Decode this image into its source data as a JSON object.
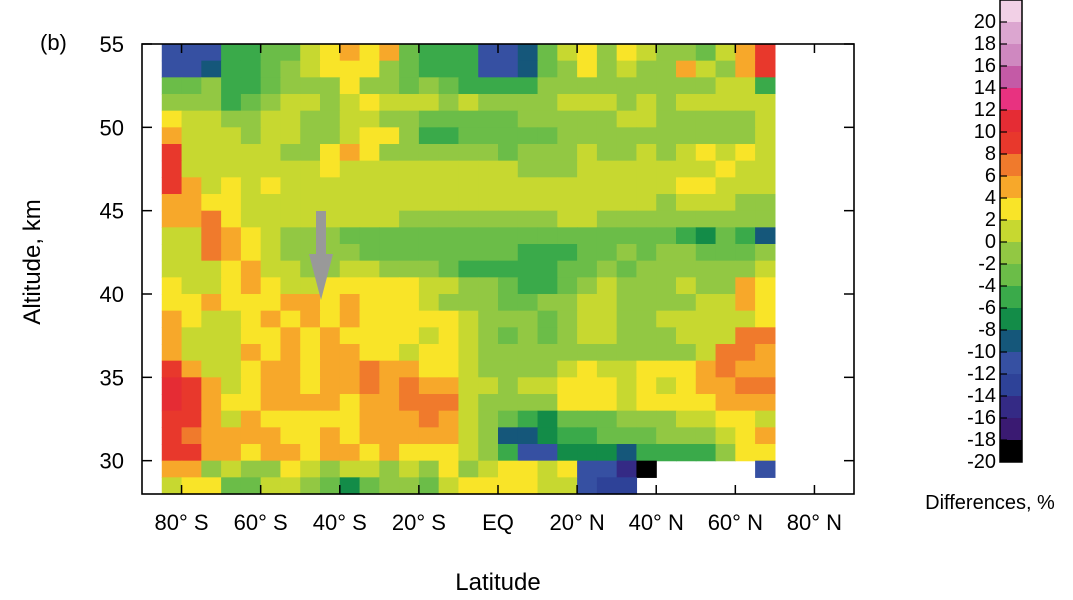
{
  "chart_data": {
    "type": "heatmap",
    "panel_label": "(b)",
    "xlabel": "Latitude",
    "ylabel": "Altitude, km",
    "colorbar_label": "Differences, %",
    "x_ticks": [
      "80° S",
      "60° S",
      "40° S",
      "20° S",
      "EQ",
      "20° N",
      "40° N",
      "60° N",
      "80° N"
    ],
    "y_ticks": [
      30,
      35,
      40,
      45,
      50,
      55
    ],
    "xlim": [
      -90,
      90
    ],
    "ylim": [
      28,
      55
    ],
    "x_centers": [
      -82.5,
      -77.5,
      -72.5,
      -67.5,
      -62.5,
      -57.5,
      -52.5,
      -47.5,
      -42.5,
      -37.5,
      -32.5,
      -27.5,
      -22.5,
      -17.5,
      -12.5,
      -7.5,
      -2.5,
      2.5,
      7.5,
      12.5,
      17.5,
      22.5,
      27.5,
      32.5,
      37.5,
      42.5,
      47.5,
      52.5,
      57.5,
      62.5,
      67.5
    ],
    "y_centers": [
      54.5,
      53.5,
      52.5,
      51.5,
      50.5,
      49.5,
      48.5,
      47.5,
      46.5,
      45.5,
      44.5,
      43.5,
      42.5,
      41.5,
      40.5,
      39.5,
      38.5,
      37.5,
      36.5,
      35.5,
      34.5,
      33.5,
      32.5,
      31.5,
      30.5,
      29.5,
      28.5
    ],
    "values": [
      [
        -12,
        -12,
        -12,
        -7,
        -7,
        -5,
        -4,
        -1,
        1,
        3,
        1,
        3,
        -5,
        -6,
        -7,
        -7,
        -12,
        -12,
        -10,
        -4,
        -1,
        2,
        -3,
        1,
        -1,
        -3,
        -3,
        -5,
        -1,
        4,
        8
      ],
      [
        -12,
        -12,
        -10,
        -6,
        -7,
        -5,
        -3,
        -1,
        1,
        2,
        2,
        -2,
        -4,
        -6,
        -6,
        -7,
        -13,
        -13,
        -10,
        -4,
        -2,
        1,
        -3,
        -1,
        -3,
        -3,
        3,
        -1,
        -3,
        3,
        8
      ],
      [
        -4,
        -4,
        -2,
        -6,
        -6,
        -4,
        -3,
        -2,
        -2,
        1,
        -2,
        -2,
        -4,
        -3,
        -5,
        -6,
        -7,
        -7,
        -7,
        -2,
        -3,
        -2,
        -3,
        -3,
        -2,
        -3,
        -2,
        -3,
        -1,
        -1,
        -6
      ],
      [
        -2,
        -3,
        -3,
        -7,
        -4,
        -2,
        0,
        -1,
        -2,
        -1,
        1,
        -1,
        -1,
        -1,
        -2,
        -1,
        -2,
        -2,
        -2,
        -2,
        -1,
        -1,
        -1,
        -2,
        -1,
        -2,
        -1,
        -1,
        -1,
        -1,
        -1
      ],
      [
        2,
        0,
        0,
        -2,
        -2,
        -1,
        -1,
        -3,
        -2,
        -1,
        0,
        -2,
        -3,
        -5,
        -5,
        -4,
        -4,
        -4,
        -3,
        -2,
        -2,
        -2,
        -3,
        0,
        0,
        -3,
        -2,
        -2,
        -2,
        -2,
        -1
      ],
      [
        4,
        0,
        0,
        0,
        -2,
        -1,
        -1,
        -2,
        -2,
        0,
        1,
        1,
        -2,
        -6,
        -6,
        -5,
        -5,
        -5,
        -5,
        -4,
        -3,
        -2,
        -3,
        -2,
        -2,
        -3,
        -3,
        -2,
        -2,
        -2,
        -1
      ],
      [
        7,
        0,
        0,
        -1,
        -1,
        -1,
        -2,
        -2,
        2,
        3,
        2,
        -2,
        -3,
        -3,
        -3,
        -3,
        -3,
        -4,
        -3,
        -3,
        -3,
        -1,
        -2,
        -2,
        -1,
        -2,
        -1,
        2,
        0,
        1,
        0
      ],
      [
        7,
        0,
        0,
        -1,
        0,
        0,
        -1,
        0,
        1,
        0,
        -1,
        -1,
        -1,
        -1,
        -1,
        -1,
        -1,
        -1,
        -2,
        -2,
        -2,
        -1,
        -1,
        0,
        0,
        -1,
        -1,
        0,
        1,
        0,
        0
      ],
      [
        7,
        4,
        0,
        1,
        0,
        2,
        0,
        -1,
        0,
        0,
        0,
        -1,
        0,
        0,
        0,
        0,
        0,
        -1,
        0,
        0,
        0,
        0,
        0,
        0,
        0,
        0,
        1,
        1,
        0,
        -1,
        -1
      ],
      [
        4,
        4,
        1,
        1,
        0,
        0,
        0,
        0,
        0,
        0,
        0,
        0,
        0,
        0,
        0,
        0,
        0,
        0,
        0,
        -1,
        -1,
        0,
        0,
        0,
        -1,
        -2,
        -1,
        -1,
        -1,
        -2,
        -2
      ],
      [
        3,
        3,
        6,
        2,
        0,
        -1,
        -1,
        -1,
        -1,
        0,
        -1,
        -1,
        -2,
        -3,
        -3,
        -3,
        -3,
        -3,
        -2,
        -2,
        -1,
        -1,
        -2,
        -2,
        -2,
        -2,
        -2,
        -2,
        -2,
        -2,
        -2
      ],
      [
        -1,
        -1,
        6,
        3,
        1,
        -1,
        -2,
        -3,
        -3,
        -4,
        -5,
        -5,
        -4,
        -4,
        -4,
        -5,
        -4,
        -4,
        -4,
        -5,
        -4,
        -4,
        -4,
        -4,
        -5,
        -5,
        -6,
        -8,
        -5,
        -6,
        -10
      ],
      [
        -1,
        -1,
        5,
        3,
        1,
        -1,
        -2,
        -3,
        -3,
        -3,
        -5,
        -5,
        -4,
        -4,
        -4,
        -4,
        -4,
        -4,
        -6,
        -6,
        -7,
        -4,
        -4,
        -3,
        -4,
        -3,
        -3,
        -4,
        -4,
        -4,
        -3
      ],
      [
        0,
        -1,
        -1,
        1,
        4,
        0,
        -1,
        -3,
        -3,
        0,
        -1,
        -3,
        -3,
        -3,
        -4,
        -6,
        -6,
        -6,
        -7,
        -6,
        -4,
        -4,
        -3,
        -4,
        -3,
        -3,
        -3,
        -3,
        -3,
        -3,
        -1
      ],
      [
        1,
        0,
        0,
        2,
        4,
        1,
        0,
        -1,
        1,
        2,
        1,
        2,
        2,
        0,
        -1,
        -3,
        -3,
        -5,
        -7,
        -7,
        -4,
        -2,
        -1,
        -2,
        -2,
        -2,
        -1,
        -2,
        -2,
        4,
        1
      ],
      [
        1,
        1,
        3,
        2,
        1,
        2,
        4,
        3,
        2,
        3,
        2,
        1,
        2,
        0,
        -2,
        -2,
        -3,
        -4,
        -5,
        -3,
        -3,
        -1,
        -1,
        -2,
        -2,
        -2,
        -2,
        -1,
        -1,
        4,
        1
      ],
      [
        3,
        2,
        0,
        -1,
        1,
        3,
        1,
        4,
        1,
        3,
        2,
        2,
        2,
        1,
        2,
        -1,
        -2,
        -3,
        -3,
        -4,
        -2,
        0,
        -1,
        -2,
        -2,
        -1,
        -1,
        -1,
        0,
        -1,
        1
      ],
      [
        3,
        0,
        -1,
        0,
        2,
        2,
        4,
        2,
        3,
        2,
        2,
        2,
        1,
        0,
        1,
        -1,
        -2,
        -4,
        -3,
        -4,
        -2,
        -1,
        -1,
        -2,
        -2,
        -2,
        -1,
        -1,
        -1,
        5,
        5
      ],
      [
        4,
        0,
        0,
        -1,
        3,
        2,
        3,
        2,
        4,
        4,
        2,
        1,
        0,
        1,
        1,
        -1,
        -2,
        -3,
        -3,
        -2,
        -2,
        -2,
        -2,
        -2,
        -2,
        -2,
        -2,
        0,
        5,
        5,
        4
      ],
      [
        8,
        4,
        0,
        0,
        2,
        3,
        3,
        2,
        4,
        4,
        5,
        3,
        3,
        1,
        2,
        -1,
        -2,
        -3,
        -2,
        -2,
        0,
        1,
        0,
        0,
        1,
        1,
        1,
        4,
        5,
        3,
        4
      ],
      [
        9,
        8,
        3,
        0,
        2,
        4,
        4,
        2,
        3,
        4,
        5,
        4,
        5,
        4,
        4,
        -1,
        -1,
        -2,
        -1,
        -1,
        2,
        2,
        1,
        0,
        1,
        0,
        1,
        4,
        3,
        5,
        6
      ],
      [
        9,
        8,
        3,
        1,
        2,
        3,
        4,
        3,
        3,
        2,
        3,
        4,
        5,
        5,
        5,
        -1,
        -2,
        -2,
        -2,
        -2,
        1,
        1,
        1,
        0,
        2,
        1,
        1,
        1,
        4,
        3,
        4
      ],
      [
        8,
        7,
        4,
        0,
        3,
        2,
        1,
        2,
        1,
        2,
        3,
        3,
        4,
        5,
        3,
        -1,
        -2,
        -5,
        -7,
        -8,
        -4,
        -4,
        -4,
        -3,
        -2,
        -2,
        -1,
        0,
        1,
        1,
        -1
      ],
      [
        8,
        6,
        4,
        4,
        3,
        4,
        1,
        2,
        4,
        2,
        3,
        3,
        3,
        4,
        4,
        -1,
        -3,
        -10,
        -10,
        -8,
        -7,
        -6,
        -5,
        -4,
        -4,
        -3,
        -2,
        -2,
        -1,
        1,
        3
      ],
      [
        8,
        8,
        4,
        4,
        2,
        4,
        4,
        2,
        3,
        3,
        2,
        3,
        2,
        2,
        2,
        -1,
        -3,
        -7,
        -12,
        -12,
        -8,
        -9,
        -8,
        -10,
        -6,
        -6,
        -7,
        -6,
        -2,
        1,
        1
      ],
      [
        4,
        3,
        -2,
        -1,
        -2,
        -2,
        2,
        0,
        -2,
        -1,
        -1,
        -2,
        0,
        -2,
        1,
        -2,
        0,
        1,
        1,
        0,
        1,
        -12,
        -12,
        -16,
        -20,
        null,
        null,
        null,
        null,
        null,
        -12
      ],
      [
        -1,
        2,
        2,
        -4,
        -4,
        -1,
        -1,
        -2,
        -4,
        -8,
        -5,
        -2,
        -2,
        -4,
        -1,
        1,
        1,
        2,
        1,
        0,
        -1,
        -12,
        -14,
        -14,
        null,
        null,
        null,
        null,
        null,
        null,
        null
      ]
    ],
    "colorbar": {
      "levels": [
        20,
        18,
        16,
        14,
        12,
        10,
        8,
        6,
        4,
        2,
        0,
        -2,
        -4,
        -6,
        -8,
        -10,
        -12,
        -14,
        -16,
        -18,
        -20
      ],
      "labels": [
        "20",
        "18",
        "16",
        "14",
        "12",
        "10",
        "8",
        "6",
        "4",
        "2",
        "0",
        "-2",
        "-4",
        "-6",
        "-8",
        "-10",
        "-12",
        "-14",
        "-16",
        "-18",
        "-20"
      ],
      "colors": [
        "#f2d0e6",
        "#dca6d0",
        "#cf88c0",
        "#c45aa6",
        "#e83280",
        "#e52c34",
        "#e8382c",
        "#f07a2c",
        "#f7a82a",
        "#f9e428",
        "#c7d830",
        "#92c843",
        "#6bbd48",
        "#3aaa4a",
        "#138c48",
        "#15577a",
        "#3650a2",
        "#2e4298",
        "#342a85",
        "#3a1a72",
        "#000000"
      ]
    }
  }
}
